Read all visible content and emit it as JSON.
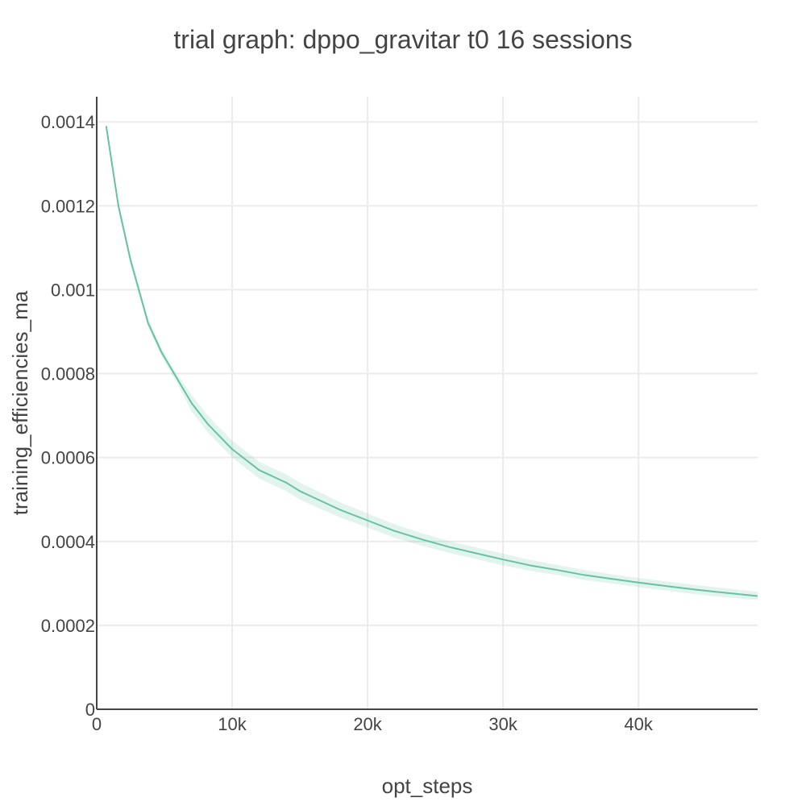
{
  "chart_data": {
    "type": "line",
    "title": "trial graph: dppo_gravitar t0 16 sessions",
    "xlabel": "opt_steps",
    "ylabel": "training_efficiencies_ma",
    "xlim": [
      0,
      48800
    ],
    "ylim": [
      0,
      0.00146
    ],
    "grid": true,
    "x_ticks": [
      {
        "value": 0,
        "label": "0"
      },
      {
        "value": 10000,
        "label": "10k"
      },
      {
        "value": 20000,
        "label": "20k"
      },
      {
        "value": 30000,
        "label": "30k"
      },
      {
        "value": 40000,
        "label": "40k"
      }
    ],
    "y_ticks": [
      {
        "value": 0,
        "label": "0"
      },
      {
        "value": 0.0002,
        "label": "0.0002"
      },
      {
        "value": 0.0004,
        "label": "0.0004"
      },
      {
        "value": 0.0006,
        "label": "0.0006"
      },
      {
        "value": 0.0008,
        "label": "0.0008"
      },
      {
        "value": 0.001,
        "label": "0.001"
      },
      {
        "value": 0.0012,
        "label": "0.0012"
      },
      {
        "value": 0.0014,
        "label": "0.0014"
      }
    ],
    "series": [
      {
        "color": "#66c2a5",
        "band_color": "#66c2a5",
        "x": [
          700,
          1600,
          2500,
          3800,
          4800,
          5900,
          7000,
          8200,
          10000,
          12000,
          14000,
          15000,
          16000,
          18000,
          20000,
          22000,
          24000,
          26000,
          28000,
          30000,
          32000,
          34000,
          36000,
          38000,
          40000,
          42000,
          44000,
          46000,
          48800
        ],
        "y": [
          0.00139,
          0.0012,
          0.00107,
          0.00092,
          0.00085,
          0.00079,
          0.00073,
          0.00068,
          0.00062,
          0.00057,
          0.00054,
          0.00052,
          0.000505,
          0.000475,
          0.00045,
          0.000425,
          0.000405,
          0.000387,
          0.000372,
          0.000357,
          0.000343,
          0.000332,
          0.00032,
          0.000311,
          0.000302,
          0.000294,
          0.000286,
          0.000279,
          0.00027
        ],
        "y_upper": [
          0.0014,
          0.00121,
          0.00108,
          0.00093,
          0.00086,
          0.0008,
          0.00075,
          0.0007,
          0.00064,
          0.00059,
          0.00056,
          0.00054,
          0.000525,
          0.000493,
          0.000467,
          0.000441,
          0.00042,
          0.000401,
          0.000386,
          0.000371,
          0.000356,
          0.000344,
          0.000332,
          0.000322,
          0.000313,
          0.000305,
          0.000297,
          0.00029,
          0.00028
        ],
        "y_lower": [
          0.00138,
          0.00119,
          0.00106,
          0.00091,
          0.00084,
          0.00078,
          0.00071,
          0.00066,
          0.0006,
          0.00055,
          0.00052,
          0.0005,
          0.000485,
          0.000457,
          0.000433,
          0.000409,
          0.00039,
          0.000373,
          0.000358,
          0.000343,
          0.00033,
          0.00032,
          0.000308,
          0.0003,
          0.000291,
          0.000283,
          0.000275,
          0.000268,
          0.00026
        ]
      }
    ]
  }
}
